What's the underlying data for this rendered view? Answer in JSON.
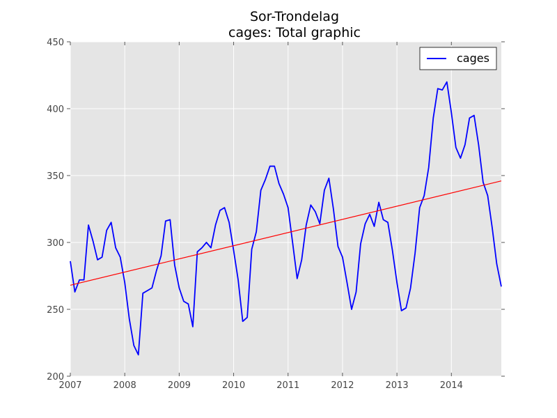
{
  "chart_data": {
    "type": "line",
    "title": "Sor-Trondelag",
    "subtitle": "cages: Total graphic",
    "xlabel": "",
    "ylabel": "",
    "xlim": [
      2007.0,
      2014.917
    ],
    "ylim": [
      200,
      450
    ],
    "x_ticks": [
      2007,
      2008,
      2009,
      2010,
      2011,
      2012,
      2013,
      2014
    ],
    "y_ticks": [
      200,
      250,
      300,
      350,
      400,
      450
    ],
    "grid": true,
    "legend": {
      "position": "top-right",
      "entries": [
        "cages"
      ]
    },
    "series": [
      {
        "name": "cages",
        "color": "#0000ff",
        "x": [
          2007.0,
          2007.083,
          2007.167,
          2007.25,
          2007.333,
          2007.417,
          2007.5,
          2007.583,
          2007.667,
          2007.75,
          2007.833,
          2007.917,
          2008.0,
          2008.083,
          2008.167,
          2008.25,
          2008.333,
          2008.417,
          2008.5,
          2008.583,
          2008.667,
          2008.75,
          2008.833,
          2008.917,
          2009.0,
          2009.083,
          2009.167,
          2009.25,
          2009.333,
          2009.417,
          2009.5,
          2009.583,
          2009.667,
          2009.75,
          2009.833,
          2009.917,
          2010.0,
          2010.083,
          2010.167,
          2010.25,
          2010.333,
          2010.417,
          2010.5,
          2010.583,
          2010.667,
          2010.75,
          2010.833,
          2010.917,
          2011.0,
          2011.083,
          2011.167,
          2011.25,
          2011.333,
          2011.417,
          2011.5,
          2011.583,
          2011.667,
          2011.75,
          2011.833,
          2011.917,
          2012.0,
          2012.083,
          2012.167,
          2012.25,
          2012.333,
          2012.417,
          2012.5,
          2012.583,
          2012.667,
          2012.75,
          2012.833,
          2012.917,
          2013.0,
          2013.083,
          2013.167,
          2013.25,
          2013.333,
          2013.417,
          2013.5,
          2013.583,
          2013.667,
          2013.75,
          2013.833,
          2013.917,
          2014.0,
          2014.083,
          2014.167,
          2014.25,
          2014.333,
          2014.417,
          2014.5,
          2014.583,
          2014.667,
          2014.75,
          2014.833,
          2014.917
        ],
        "values": [
          286,
          263,
          272,
          272,
          313,
          301,
          287,
          289,
          309,
          315,
          296,
          289,
          270,
          243,
          223,
          216,
          262,
          264,
          266,
          279,
          290,
          316,
          317,
          283,
          266,
          256,
          254,
          237,
          293,
          296,
          300,
          296,
          313,
          324,
          326,
          315,
          294,
          272,
          241,
          244,
          295,
          308,
          339,
          347,
          357,
          357,
          344,
          336,
          326,
          300,
          273,
          287,
          313,
          328,
          323,
          314,
          339,
          348,
          325,
          297,
          289,
          270,
          250,
          263,
          299,
          314,
          321,
          312,
          330,
          317,
          315,
          294,
          270,
          249,
          251,
          266,
          292,
          326,
          335,
          356,
          393,
          415,
          414,
          420,
          397,
          371,
          363,
          373,
          393,
          395,
          373,
          345,
          335,
          311,
          284,
          267
        ]
      }
    ],
    "trend_line": {
      "color": "#ff0000",
      "x": [
        2007.0,
        2014.917
      ],
      "values": [
        268,
        346
      ]
    }
  }
}
